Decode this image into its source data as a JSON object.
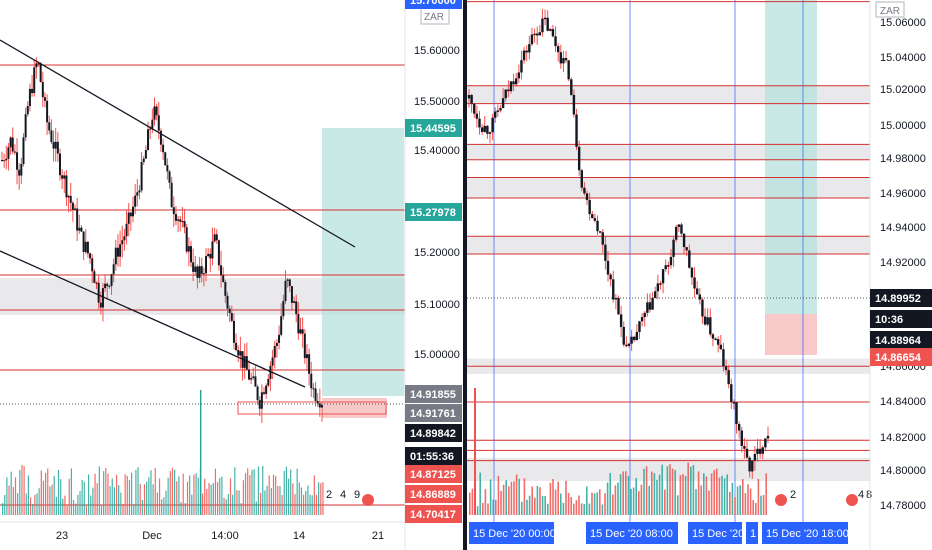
{
  "left_panel": {
    "currency": "ZAR",
    "axis_labels": [
      "15.60000",
      "15.50000",
      "15.40000",
      "15.20000",
      "15.10000",
      "15.00000"
    ],
    "time_labels": [
      "23",
      "Dec",
      "14:00",
      "14",
      "21"
    ],
    "price_tags": [
      {
        "text": "15.70000",
        "color": "#2962ff"
      },
      {
        "text": "15.44595",
        "color": "#26a69a"
      },
      {
        "text": "15.27978",
        "color": "#26a69a"
      },
      {
        "text": "14.91855",
        "color": "#787b86"
      },
      {
        "text": "14.91761",
        "color": "#787b86"
      },
      {
        "text": "14.89842",
        "color": "#131722"
      },
      {
        "text": "01:55:36",
        "color": "#131722"
      },
      {
        "text": "14.87125",
        "color": "#ef5350"
      },
      {
        "text": "14.86889",
        "color": "#ef5350"
      },
      {
        "text": "14.70417",
        "color": "#ef5350"
      }
    ],
    "event_badges": [
      "2",
      "4",
      "9"
    ]
  },
  "right_panel": {
    "currency": "ZAR",
    "axis_labels": [
      "15.06000",
      "15.04000",
      "15.02000",
      "15.00000",
      "14.98000",
      "14.96000",
      "14.94000",
      "14.92000",
      "14.86000",
      "14.84000",
      "14.82000",
      "14.80000",
      "14.78000"
    ],
    "time_labels": [
      "15 Dec '20  00:00",
      "15 Dec '20  08:00",
      "15 Dec '20",
      "1",
      "15 Dec '20  18:00"
    ],
    "price_tags": [
      {
        "text": "14.89952",
        "color": "#131722"
      },
      {
        "text": "10:36",
        "color": "#131722"
      },
      {
        "text": "14.88964",
        "color": "#131722"
      },
      {
        "text": "14.86654",
        "color": "#ef5350"
      }
    ],
    "event_badges": [
      "2",
      "4",
      "8"
    ]
  },
  "colors": {
    "up": "#26a69a",
    "down": "#ef5350",
    "candle": "#131722",
    "level": "#d32f2f",
    "zone": "#e9e9ec",
    "profit": "#b2dfdb",
    "loss": "#f8c9c9",
    "vline": "#2962ff"
  },
  "chart_data": [
    {
      "type": "candlestick",
      "title": "",
      "currency": "ZAR",
      "timeframe_labels": [
        "23",
        "Dec",
        "14:00",
        "14",
        "21"
      ],
      "ylim": [
        14.7,
        15.7
      ],
      "y_ticks": [
        15.6,
        15.5,
        15.4,
        15.2,
        15.1,
        15.0
      ],
      "path": [
        15.38,
        15.42,
        15.36,
        15.5,
        15.58,
        15.46,
        15.4,
        15.34,
        15.28,
        15.22,
        15.18,
        15.1,
        15.14,
        15.2,
        15.24,
        15.3,
        15.38,
        15.48,
        15.42,
        15.3,
        15.26,
        15.2,
        15.14,
        15.18,
        15.22,
        15.12,
        15.04,
        14.98,
        14.94,
        14.9,
        14.96,
        15.02,
        15.14,
        15.08,
        15.0,
        14.92,
        14.9
      ],
      "horizontal_levels": [
        15.57,
        15.28,
        15.15,
        15.08,
        14.96
      ],
      "gray_zone": [
        15.08,
        15.15
      ],
      "long_position": {
        "entry": 14.918,
        "target": 15.446,
        "stop": 14.898
      },
      "trendlines": "descending channel",
      "volume": "columns, one tall green spike"
    },
    {
      "type": "candlestick",
      "title": "",
      "currency": "ZAR",
      "x_labels": [
        "15 Dec '20 00:00",
        "15 Dec '20 08:00",
        "15 Dec '20",
        "15 Dec '20 18:00"
      ],
      "ylim": [
        14.775,
        15.07
      ],
      "y_ticks": [
        15.06,
        15.04,
        15.02,
        15.0,
        14.98,
        14.96,
        14.94,
        14.92,
        14.86,
        14.84,
        14.82,
        14.8,
        14.78
      ],
      "path": [
        15.03,
        15.025,
        15.02,
        15.018,
        15.02,
        15.025,
        15.03,
        15.035,
        15.04,
        15.045,
        15.05,
        15.055,
        15.058,
        15.06,
        15.055,
        15.05,
        15.045,
        15.04,
        15.02,
        15.0,
        14.99,
        14.985,
        14.98,
        14.97,
        14.96,
        14.95,
        14.94,
        14.93,
        14.935,
        14.94,
        14.945,
        14.95,
        14.955,
        14.96,
        14.965,
        14.975,
        14.98,
        14.97,
        14.96,
        14.95,
        14.945,
        14.94,
        14.935,
        14.93,
        14.92,
        14.91,
        14.9,
        14.89,
        14.885,
        14.89,
        14.895,
        14.9
      ],
      "horizontal_levels": [
        15.068,
        15.035,
        15.028,
        15.012,
        15.006,
        14.999,
        14.991,
        14.976,
        14.969,
        14.925,
        14.911,
        14.896,
        14.892,
        14.888
      ],
      "gray_zones": [
        [
          15.028,
          15.035
        ],
        [
          15.006,
          15.012
        ],
        [
          14.991,
          14.999
        ],
        [
          14.969,
          14.976
        ],
        [
          14.922,
          14.928
        ],
        [
          14.88,
          14.889
        ]
      ],
      "long_position": {
        "entry": 14.8896,
        "target": 15.07,
        "stop": 14.8665
      },
      "volume": "red and green columns"
    }
  ]
}
